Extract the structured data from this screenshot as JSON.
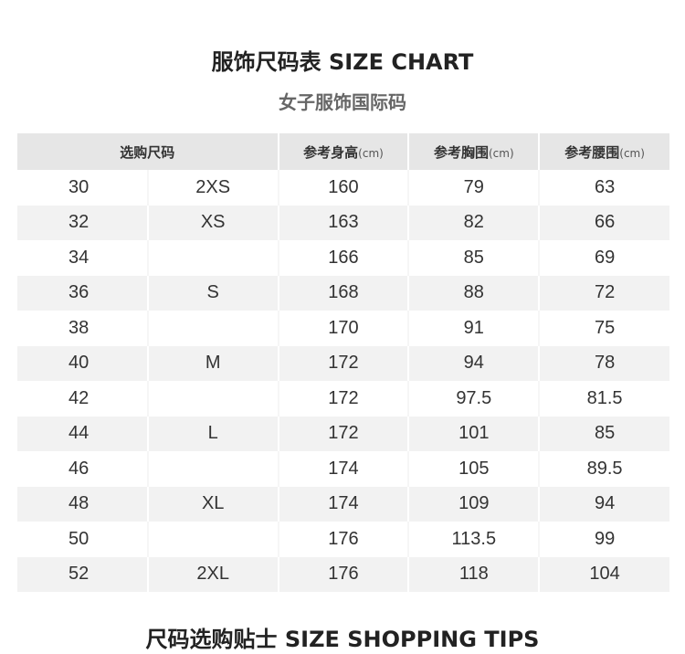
{
  "title": "服饰尺码表 SIZE CHART",
  "subtitle": "女子服饰国际码",
  "table": {
    "headers": [
      {
        "label": "选购尺码",
        "unit": ""
      },
      {
        "label": "参考身高",
        "unit": "(cm)"
      },
      {
        "label": "参考胸围",
        "unit": "(cm)"
      },
      {
        "label": "参考腰围",
        "unit": "(cm)"
      }
    ],
    "rows": [
      [
        "30",
        "2XS",
        "160",
        "79",
        "63"
      ],
      [
        "32",
        "XS",
        "163",
        "82",
        "66"
      ],
      [
        "34",
        "",
        "166",
        "85",
        "69"
      ],
      [
        "36",
        "S",
        "168",
        "88",
        "72"
      ],
      [
        "38",
        "",
        "170",
        "91",
        "75"
      ],
      [
        "40",
        "M",
        "172",
        "94",
        "78"
      ],
      [
        "42",
        "",
        "172",
        "97.5",
        "81.5"
      ],
      [
        "44",
        "L",
        "172",
        "101",
        "85"
      ],
      [
        "46",
        "",
        "174",
        "105",
        "89.5"
      ],
      [
        "48",
        "XL",
        "174",
        "109",
        "94"
      ],
      [
        "50",
        "",
        "176",
        "113.5",
        "99"
      ],
      [
        "52",
        "2XL",
        "176",
        "118",
        "104"
      ]
    ]
  },
  "footer_title": "尺码选购贴士 SIZE SHOPPING TIPS",
  "colors": {
    "header_bg": "#e6e6e6",
    "stripe_bg": "#f2f2f2"
  }
}
